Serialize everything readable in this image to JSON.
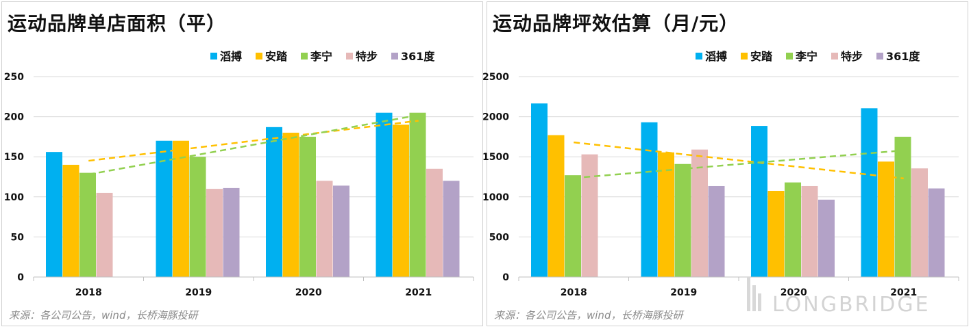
{
  "colors": {
    "滔搏": "#00b0f0",
    "安踏": "#ffc000",
    "李宁": "#92d050",
    "特步": "#e6b9b8",
    "361度": "#b3a2c7",
    "trend_anta": "#ffc000",
    "trend_lining": "#92d050"
  },
  "left": {
    "title": "运动品牌单店面积（平）",
    "source": "来源：各公司公告，wind，长桥海豚投研"
  },
  "right": {
    "title": "运动品牌坪效估算（月/元）",
    "source": "来源：各公司公告，wind，长桥海豚投研"
  },
  "watermark": {
    "text": "LONGBRIDGE"
  },
  "chart_data": [
    {
      "type": "bar",
      "title": "运动品牌单店面积（平）",
      "categories": [
        "2018",
        "2019",
        "2020",
        "2021"
      ],
      "ylim": [
        0,
        250
      ],
      "yticks": [
        0,
        50,
        100,
        150,
        200,
        250
      ],
      "grid": true,
      "legend_position": "top",
      "series": [
        {
          "name": "滔搏",
          "values": [
            156,
            170,
            187,
            205
          ]
        },
        {
          "name": "安踏",
          "values": [
            140,
            170,
            180,
            190
          ]
        },
        {
          "name": "李宁",
          "values": [
            130,
            150,
            175,
            205
          ]
        },
        {
          "name": "特步",
          "values": [
            105,
            110,
            120,
            135
          ]
        },
        {
          "name": "361度",
          "values": [
            null,
            111,
            114,
            120
          ]
        }
      ],
      "trendlines": [
        {
          "series": "安踏",
          "style": "dashed",
          "from": [
            1,
            145
          ],
          "to": [
            4,
            195
          ]
        },
        {
          "series": "李宁",
          "style": "dashed",
          "from": [
            1,
            128
          ],
          "to": [
            4,
            202
          ]
        }
      ]
    },
    {
      "type": "bar",
      "title": "运动品牌坪效估算（月/元）",
      "categories": [
        "2018",
        "2019",
        "2020",
        "2021"
      ],
      "ylim": [
        0,
        2500
      ],
      "yticks": [
        0,
        500,
        1000,
        1500,
        2000,
        2500
      ],
      "grid": true,
      "legend_position": "top",
      "series": [
        {
          "name": "滔搏",
          "values": [
            2165,
            1930,
            1885,
            2105
          ]
        },
        {
          "name": "安踏",
          "values": [
            1770,
            1555,
            1075,
            1440
          ]
        },
        {
          "name": "李宁",
          "values": [
            1270,
            1410,
            1180,
            1750
          ]
        },
        {
          "name": "特步",
          "values": [
            1530,
            1590,
            1135,
            1355
          ]
        },
        {
          "name": "361度",
          "values": [
            null,
            1135,
            965,
            1105
          ]
        }
      ],
      "trendlines": [
        {
          "series": "安踏",
          "style": "dashed",
          "from": [
            1,
            1680
          ],
          "to": [
            4,
            1230
          ]
        },
        {
          "series": "李宁",
          "style": "dashed",
          "from": [
            1,
            1235
          ],
          "to": [
            4,
            1580
          ]
        }
      ]
    }
  ]
}
